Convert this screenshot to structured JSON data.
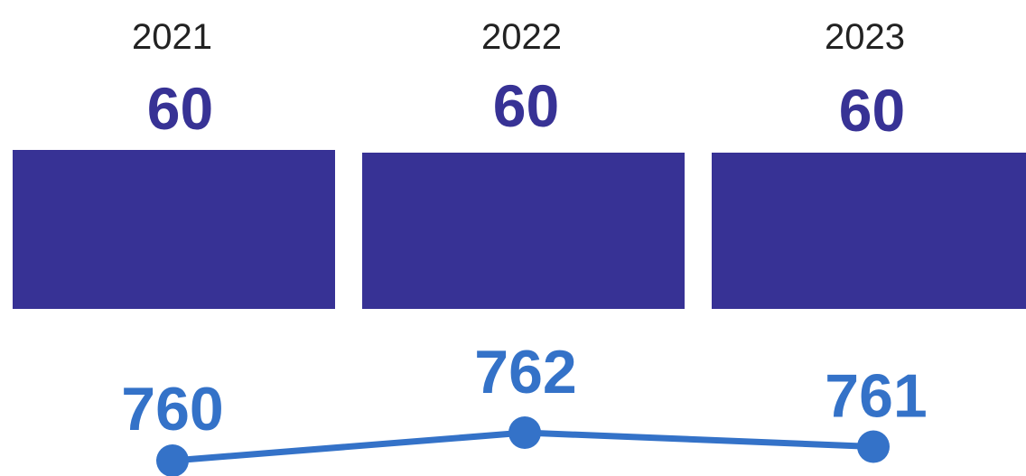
{
  "chart_data": {
    "type": "bar+line",
    "categories": [
      "2021",
      "2022",
      "2023"
    ],
    "bar_series": {
      "values": [
        60,
        60,
        60
      ],
      "color": "#373295"
    },
    "line_series": {
      "values": [
        760,
        762,
        761
      ],
      "color": "#3472c8"
    },
    "title": "",
    "xlabel": "",
    "ylabel": "",
    "grid": false,
    "legend": "none"
  }
}
